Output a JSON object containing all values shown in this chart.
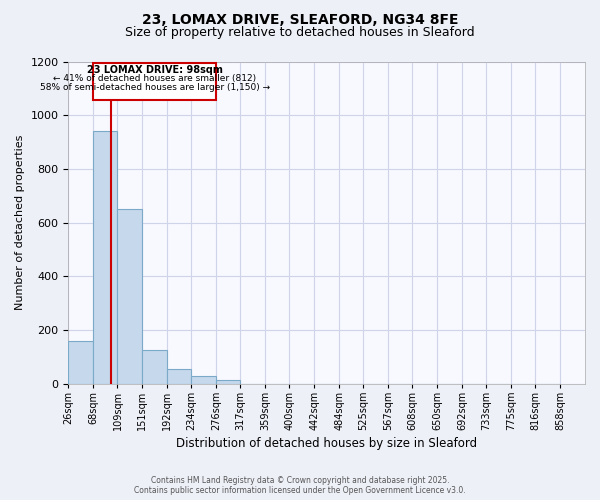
{
  "title": "23, LOMAX DRIVE, SLEAFORD, NG34 8FE",
  "subtitle": "Size of property relative to detached houses in Sleaford",
  "xlabel": "Distribution of detached houses by size in Sleaford",
  "ylabel": "Number of detached properties",
  "bar_values": [
    160,
    940,
    650,
    125,
    55,
    28,
    12,
    0,
    0,
    0,
    0,
    0,
    0,
    0,
    0,
    0,
    0,
    0,
    0,
    0
  ],
  "bar_labels": [
    "26sqm",
    "68sqm",
    "109sqm",
    "151sqm",
    "192sqm",
    "234sqm",
    "276sqm",
    "317sqm",
    "359sqm",
    "400sqm",
    "442sqm",
    "484sqm",
    "525sqm",
    "567sqm",
    "608sqm",
    "650sqm",
    "692sqm",
    "733sqm",
    "775sqm",
    "816sqm",
    "858sqm"
  ],
  "bar_color": "#c5d8ec",
  "bar_edge_color": "#7aaac8",
  "ylim": [
    0,
    1200
  ],
  "yticks": [
    0,
    200,
    400,
    600,
    800,
    1000,
    1200
  ],
  "property_line_label": "23 LOMAX DRIVE: 98sqm",
  "annotation_line1": "← 41% of detached houses are smaller (812)",
  "annotation_line2": "58% of semi-detached houses are larger (1,150) →",
  "footnote1": "Contains HM Land Registry data © Crown copyright and database right 2025.",
  "footnote2": "Contains public sector information licensed under the Open Government Licence v3.0.",
  "background_color": "#eef0f8",
  "plot_bg_color": "#f8f9ff",
  "grid_color": "#d0d4e8",
  "red_line_color": "#cc0000",
  "annotation_box_color": "#ffffff",
  "annotation_box_edge": "#cc0000",
  "title_fontsize": 10,
  "subtitle_fontsize": 9
}
